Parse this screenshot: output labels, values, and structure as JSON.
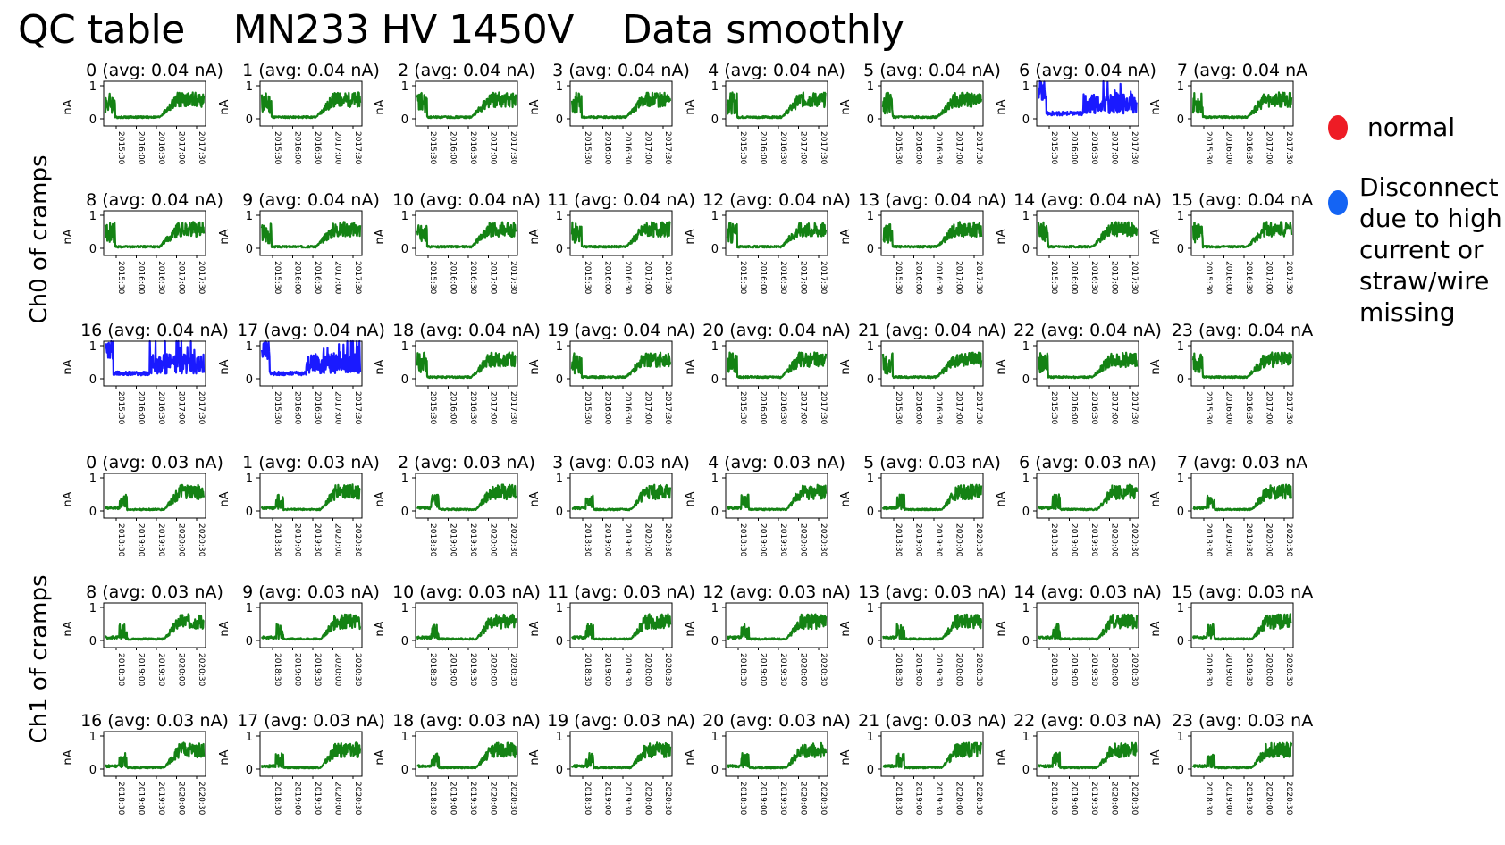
{
  "title": "QC table    MN233 HV 1450V    Data smoothly",
  "groups": [
    {
      "label": "Ch0 of cramps",
      "time_ticks": [
        "2015:30",
        "2016:00",
        "2016:30",
        "2017:00",
        "2017:30"
      ]
    },
    {
      "label": "Ch1 of cramps",
      "time_ticks": [
        "2018:30",
        "2019:00",
        "2019:30",
        "2020:00",
        "2020:30"
      ]
    }
  ],
  "legend": [
    {
      "text": "normal",
      "color": "#ee1c25"
    },
    {
      "text": "Disconnect due to high current or straw/wire missing",
      "color": "#1464f4"
    }
  ],
  "colors": {
    "normal": "#148214",
    "disconnect": "#1a1aff"
  },
  "chart_data": {
    "type": "line",
    "ylabel": "nA",
    "yticks": [
      "0",
      "1"
    ],
    "ylim": [
      0,
      1
    ],
    "panels": [
      {
        "group": 0,
        "channel": 0,
        "title": "0 (avg: 0.04 nA)",
        "avg": 0.04,
        "status": "normal"
      },
      {
        "group": 0,
        "channel": 1,
        "title": "1 (avg: 0.04 nA)",
        "avg": 0.04,
        "status": "normal"
      },
      {
        "group": 0,
        "channel": 2,
        "title": "2 (avg: 0.04 nA)",
        "avg": 0.04,
        "status": "normal"
      },
      {
        "group": 0,
        "channel": 3,
        "title": "3 (avg: 0.04 nA)",
        "avg": 0.04,
        "status": "normal"
      },
      {
        "group": 0,
        "channel": 4,
        "title": "4 (avg: 0.04 nA)",
        "avg": 0.04,
        "status": "normal"
      },
      {
        "group": 0,
        "channel": 5,
        "title": "5 (avg: 0.04 nA)",
        "avg": 0.04,
        "status": "normal"
      },
      {
        "group": 0,
        "channel": 6,
        "title": "6 (avg: 0.04 nA)",
        "avg": 0.04,
        "status": "disconnect"
      },
      {
        "group": 0,
        "channel": 7,
        "title": "7 (avg: 0.04 nA",
        "avg": 0.04,
        "status": "normal"
      },
      {
        "group": 0,
        "channel": 8,
        "title": "8 (avg: 0.04 nA)",
        "avg": 0.04,
        "status": "normal"
      },
      {
        "group": 0,
        "channel": 9,
        "title": "9 (avg: 0.04 nA)",
        "avg": 0.04,
        "status": "normal"
      },
      {
        "group": 0,
        "channel": 10,
        "title": "10 (avg: 0.04 nA)",
        "avg": 0.04,
        "status": "normal"
      },
      {
        "group": 0,
        "channel": 11,
        "title": "11 (avg: 0.04 nA)",
        "avg": 0.04,
        "status": "normal"
      },
      {
        "group": 0,
        "channel": 12,
        "title": "12 (avg: 0.04 nA)",
        "avg": 0.04,
        "status": "normal"
      },
      {
        "group": 0,
        "channel": 13,
        "title": "13 (avg: 0.04 nA)",
        "avg": 0.04,
        "status": "normal"
      },
      {
        "group": 0,
        "channel": 14,
        "title": "14 (avg: 0.04 nA)",
        "avg": 0.04,
        "status": "normal"
      },
      {
        "group": 0,
        "channel": 15,
        "title": "15 (avg: 0.04 nA",
        "avg": 0.04,
        "status": "normal"
      },
      {
        "group": 0,
        "channel": 16,
        "title": "16 (avg: 0.04 nA)",
        "avg": 0.04,
        "status": "disconnect"
      },
      {
        "group": 0,
        "channel": 17,
        "title": "17 (avg: 0.04 nA)",
        "avg": 0.04,
        "status": "disconnect"
      },
      {
        "group": 0,
        "channel": 18,
        "title": "18 (avg: 0.04 nA)",
        "avg": 0.04,
        "status": "normal"
      },
      {
        "group": 0,
        "channel": 19,
        "title": "19 (avg: 0.04 nA)",
        "avg": 0.04,
        "status": "normal"
      },
      {
        "group": 0,
        "channel": 20,
        "title": "20 (avg: 0.04 nA)",
        "avg": 0.04,
        "status": "normal"
      },
      {
        "group": 0,
        "channel": 21,
        "title": "21 (avg: 0.04 nA)",
        "avg": 0.04,
        "status": "normal"
      },
      {
        "group": 0,
        "channel": 22,
        "title": "22 (avg: 0.04 nA)",
        "avg": 0.04,
        "status": "normal"
      },
      {
        "group": 0,
        "channel": 23,
        "title": "23 (avg: 0.04 nA",
        "avg": 0.04,
        "status": "normal"
      },
      {
        "group": 1,
        "channel": 0,
        "title": "0 (avg: 0.03 nA)",
        "avg": 0.03,
        "status": "normal"
      },
      {
        "group": 1,
        "channel": 1,
        "title": "1 (avg: 0.03 nA)",
        "avg": 0.03,
        "status": "normal"
      },
      {
        "group": 1,
        "channel": 2,
        "title": "2 (avg: 0.03 nA)",
        "avg": 0.03,
        "status": "normal"
      },
      {
        "group": 1,
        "channel": 3,
        "title": "3 (avg: 0.03 nA)",
        "avg": 0.03,
        "status": "normal"
      },
      {
        "group": 1,
        "channel": 4,
        "title": "4 (avg: 0.03 nA)",
        "avg": 0.03,
        "status": "normal"
      },
      {
        "group": 1,
        "channel": 5,
        "title": "5 (avg: 0.03 nA)",
        "avg": 0.03,
        "status": "normal"
      },
      {
        "group": 1,
        "channel": 6,
        "title": "6 (avg: 0.03 nA)",
        "avg": 0.03,
        "status": "normal"
      },
      {
        "group": 1,
        "channel": 7,
        "title": "7 (avg: 0.03 nA",
        "avg": 0.03,
        "status": "normal"
      },
      {
        "group": 1,
        "channel": 8,
        "title": "8 (avg: 0.03 nA)",
        "avg": 0.03,
        "status": "normal"
      },
      {
        "group": 1,
        "channel": 9,
        "title": "9 (avg: 0.03 nA)",
        "avg": 0.03,
        "status": "normal"
      },
      {
        "group": 1,
        "channel": 10,
        "title": "10 (avg: 0.03 nA)",
        "avg": 0.03,
        "status": "normal"
      },
      {
        "group": 1,
        "channel": 11,
        "title": "11 (avg: 0.03 nA)",
        "avg": 0.03,
        "status": "normal"
      },
      {
        "group": 1,
        "channel": 12,
        "title": "12 (avg: 0.03 nA)",
        "avg": 0.03,
        "status": "normal"
      },
      {
        "group": 1,
        "channel": 13,
        "title": "13 (avg: 0.03 nA)",
        "avg": 0.03,
        "status": "normal"
      },
      {
        "group": 1,
        "channel": 14,
        "title": "14 (avg: 0.03 nA)",
        "avg": 0.03,
        "status": "normal"
      },
      {
        "group": 1,
        "channel": 15,
        "title": "15 (avg: 0.03 nA",
        "avg": 0.03,
        "status": "normal"
      },
      {
        "group": 1,
        "channel": 16,
        "title": "16 (avg: 0.03 nA)",
        "avg": 0.03,
        "status": "normal"
      },
      {
        "group": 1,
        "channel": 17,
        "title": "17 (avg: 0.03 nA)",
        "avg": 0.03,
        "status": "normal"
      },
      {
        "group": 1,
        "channel": 18,
        "title": "18 (avg: 0.03 nA)",
        "avg": 0.03,
        "status": "normal"
      },
      {
        "group": 1,
        "channel": 19,
        "title": "19 (avg: 0.03 nA)",
        "avg": 0.03,
        "status": "normal"
      },
      {
        "group": 1,
        "channel": 20,
        "title": "20 (avg: 0.03 nA)",
        "avg": 0.03,
        "status": "normal"
      },
      {
        "group": 1,
        "channel": 21,
        "title": "21 (avg: 0.03 nA)",
        "avg": 0.03,
        "status": "normal"
      },
      {
        "group": 1,
        "channel": 22,
        "title": "22 (avg: 0.03 nA)",
        "avg": 0.03,
        "status": "normal"
      },
      {
        "group": 1,
        "channel": 23,
        "title": "23 (avg: 0.03 nA",
        "avg": 0.03,
        "status": "normal"
      }
    ]
  }
}
